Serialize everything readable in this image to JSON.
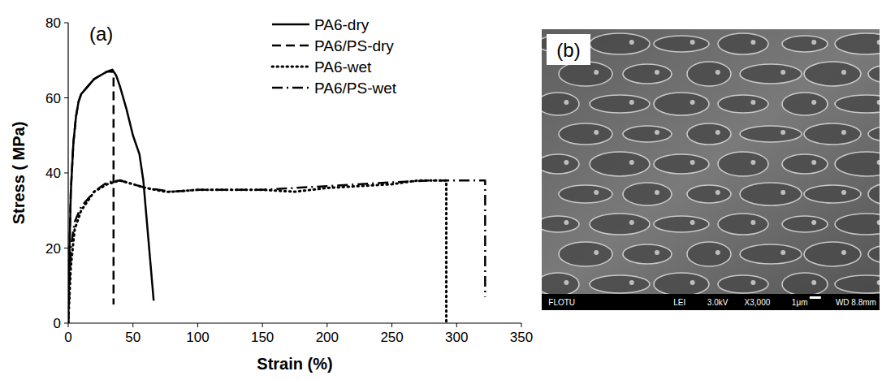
{
  "chart_data": {
    "type": "line",
    "panel_label": "(a)",
    "x_label": "Strain (%)",
    "y_label": "Stress ( MPa)",
    "xlim": [
      0,
      350
    ],
    "xticks": [
      0,
      50,
      100,
      150,
      200,
      250,
      300,
      350
    ],
    "ylim": [
      0,
      80
    ],
    "yticks": [
      0,
      20,
      40,
      60,
      80
    ],
    "grid": false,
    "legend": "top-right",
    "series": [
      {
        "name": "PA6-dry",
        "color": "#000000",
        "line_style": "solid",
        "x": [
          0,
          1,
          2,
          4,
          6,
          8,
          10,
          15,
          20,
          25,
          30,
          34,
          37,
          40,
          45,
          50,
          53,
          55,
          58,
          62,
          65,
          66
        ],
        "values": [
          0,
          20,
          35,
          48,
          55,
          59,
          61,
          63,
          65,
          66,
          67,
          67.5,
          66,
          63,
          57,
          50,
          47,
          45,
          38,
          22,
          10,
          6
        ]
      },
      {
        "name": "PA6/PS-dry",
        "color": "#000000",
        "line_style": "dashed",
        "x": [
          0,
          1,
          2,
          4,
          6,
          8,
          10,
          15,
          20,
          25,
          30,
          34,
          35,
          35
        ],
        "values": [
          0,
          20,
          35,
          48,
          55,
          59,
          61,
          63,
          65,
          66,
          67,
          67,
          66,
          5
        ]
      },
      {
        "name": "PA6-wet",
        "color": "#000000",
        "line_style": "dotted",
        "x": [
          0,
          2,
          5,
          10,
          20,
          30,
          40,
          50,
          60,
          75,
          80,
          100,
          150,
          175,
          200,
          250,
          270,
          290,
          292,
          292
        ],
        "values": [
          0,
          15,
          25,
          30,
          35,
          37,
          38,
          37,
          36,
          35,
          35,
          35.5,
          35.5,
          35,
          36,
          37,
          38,
          38,
          38,
          0
        ]
      },
      {
        "name": "PA6/PS-wet",
        "color": "#000000",
        "line_style": "dashdot",
        "x": [
          0,
          2,
          5,
          10,
          20,
          30,
          40,
          50,
          60,
          80,
          100,
          150,
          200,
          250,
          280,
          300,
          320,
          322,
          322
        ],
        "values": [
          0,
          20,
          27,
          31,
          35,
          37.5,
          38,
          37,
          36,
          35,
          35.5,
          35.5,
          36.5,
          37.5,
          38,
          38,
          38,
          38,
          7
        ]
      }
    ]
  },
  "image_panel": {
    "label": "(b)",
    "info_bar": [
      "FLOTU",
      "LEI",
      "3.0kV",
      "X3,000",
      "1μm",
      "WD 8.8mm"
    ]
  }
}
